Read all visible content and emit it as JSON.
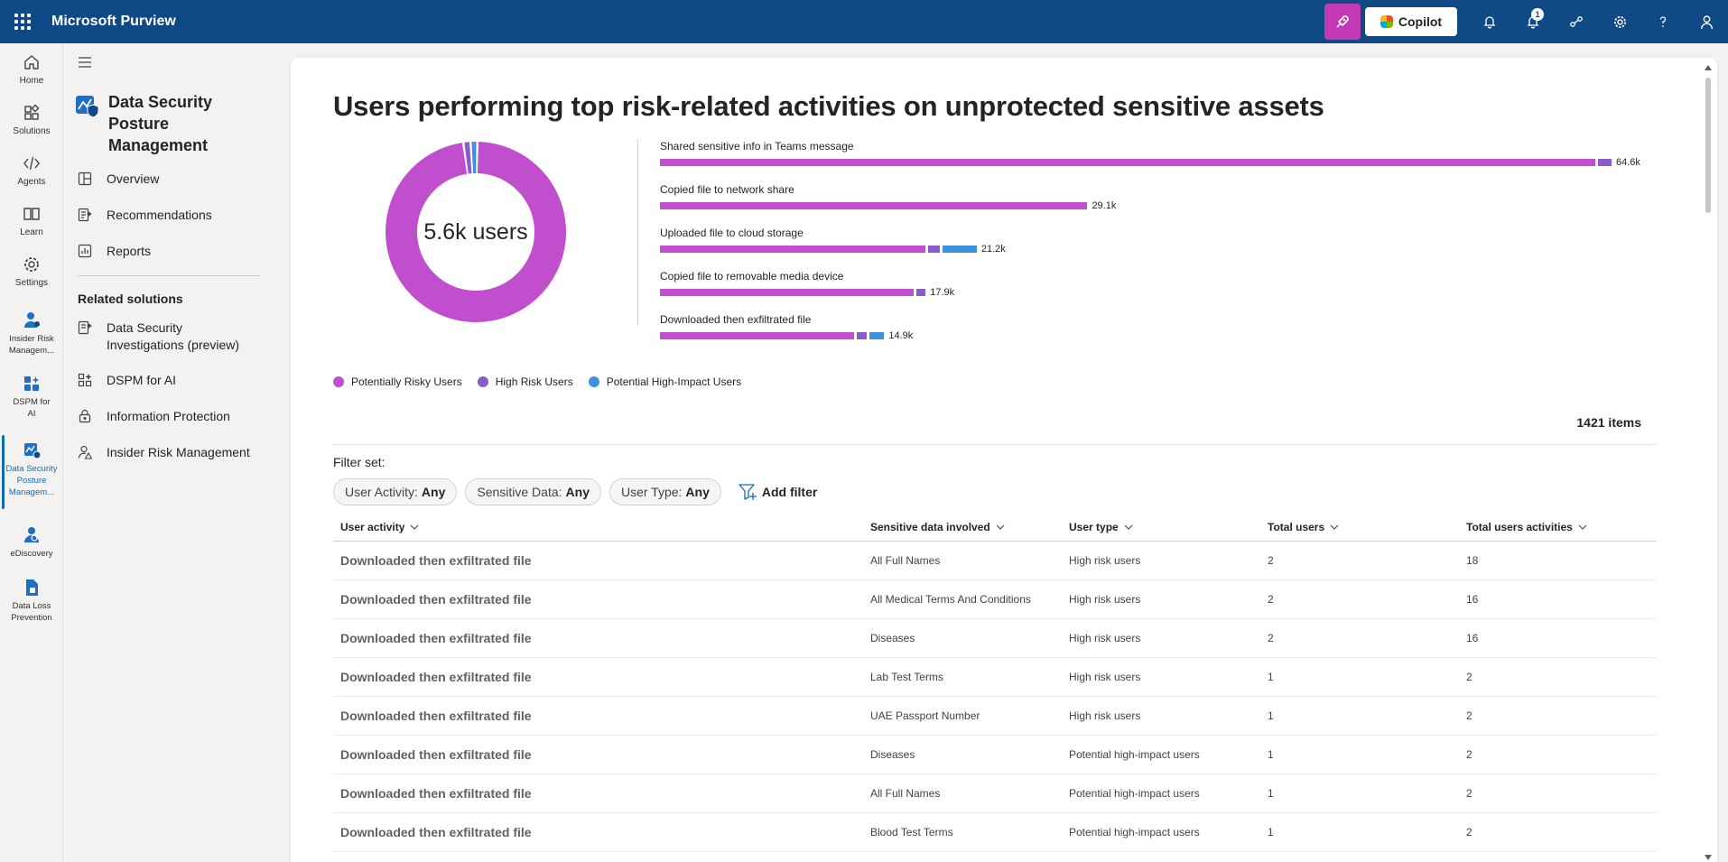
{
  "app": {
    "title": "Microsoft Purview"
  },
  "topbar": {
    "copilot_label": "Copilot",
    "notification_count": "1"
  },
  "rail": [
    {
      "label": "Home",
      "icon": "home-icon"
    },
    {
      "label": "Solutions",
      "icon": "solutions-icon"
    },
    {
      "label": "Agents",
      "icon": "agents-icon"
    },
    {
      "label": "Learn",
      "icon": "learn-icon"
    },
    {
      "label": "Settings",
      "icon": "settings-icon"
    },
    {
      "label": "Insider Risk Managem...",
      "icon": "insider-risk-icon"
    },
    {
      "label": "DSPM for AI",
      "icon": "dspm-ai-icon"
    },
    {
      "label": "Data Security Posture Managem...",
      "icon": "dspm-icon"
    },
    {
      "label": "eDiscovery",
      "icon": "ediscovery-icon"
    },
    {
      "label": "Data Loss Prevention",
      "icon": "dlp-icon"
    }
  ],
  "nav": {
    "solution_title": "Data Security Posture Management",
    "items": [
      {
        "label": "Overview"
      },
      {
        "label": "Recommendations"
      },
      {
        "label": "Reports"
      }
    ],
    "related_heading": "Related solutions",
    "related": [
      {
        "label": "Data Security Investigations (preview)"
      },
      {
        "label": "DSPM for AI"
      },
      {
        "label": "Information Protection"
      },
      {
        "label": "Insider Risk Management"
      }
    ]
  },
  "chart_data": {
    "type": "bar",
    "title": "Users performing top risk-related activities on unprotected sensitive assets",
    "donut": {
      "center_label": "5.6k users",
      "slices": [
        {
          "name": "Potentially Risky Users",
          "fraction": 0.975
        },
        {
          "name": "High Risk Users",
          "fraction": 0.013
        },
        {
          "name": "Potential High-Impact Users",
          "fraction": 0.012
        }
      ]
    },
    "categories": [
      "Shared sensitive info in Teams message",
      "Copied file to network share",
      "Uploaded file to cloud storage",
      "Copied file to removable media device",
      "Downloaded then exfiltrated file"
    ],
    "totals": [
      "64.6k",
      "29.1k",
      "21.2k",
      "17.9k",
      "14.9k"
    ],
    "series": [
      {
        "name": "Potentially Risky Users",
        "values": [
          63700,
          29100,
          18100,
          17300,
          13200
        ]
      },
      {
        "name": "High Risk Users",
        "values": [
          900,
          0,
          800,
          600,
          700
        ]
      },
      {
        "name": "Potential High-Impact Users",
        "values": [
          0,
          0,
          2300,
          0,
          1000
        ]
      }
    ],
    "xmax": 64600
  },
  "colors": {
    "potentially_risky": "#c14fcd",
    "high_risk": "#8a5cc7",
    "high_impact": "#3b93e0",
    "accent": "#0f4a86"
  },
  "table": {
    "items_count": "1421 items",
    "filter_label": "Filter set:",
    "filters": [
      {
        "name": "User Activity:",
        "value": "Any"
      },
      {
        "name": "Sensitive Data:",
        "value": "Any"
      },
      {
        "name": "User Type:",
        "value": "Any"
      }
    ],
    "add_filter_label": "Add filter",
    "columns": [
      "User activity",
      "Sensitive data involved",
      "User type",
      "Total users",
      "Total users activities"
    ],
    "rows": [
      [
        "Downloaded then exfiltrated file",
        "All Full Names",
        "High risk users",
        "2",
        "18"
      ],
      [
        "Downloaded then exfiltrated file",
        "All Medical Terms And Conditions",
        "High risk users",
        "2",
        "16"
      ],
      [
        "Downloaded then exfiltrated file",
        "Diseases",
        "High risk users",
        "2",
        "16"
      ],
      [
        "Downloaded then exfiltrated file",
        "Lab Test Terms",
        "High risk users",
        "1",
        "2"
      ],
      [
        "Downloaded then exfiltrated file",
        "UAE Passport Number",
        "High risk users",
        "1",
        "2"
      ],
      [
        "Downloaded then exfiltrated file",
        "Diseases",
        "Potential high-impact users",
        "1",
        "2"
      ],
      [
        "Downloaded then exfiltrated file",
        "All Full Names",
        "Potential high-impact users",
        "1",
        "2"
      ],
      [
        "Downloaded then exfiltrated file",
        "Blood Test Terms",
        "Potential high-impact users",
        "1",
        "2"
      ]
    ]
  }
}
